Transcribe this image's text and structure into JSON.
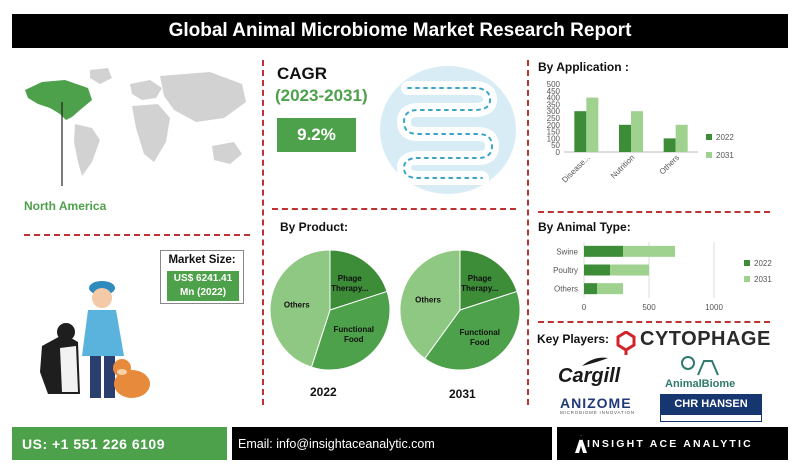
{
  "header": {
    "title": "Global Animal Microbiome Market Research Report"
  },
  "region": {
    "label": "North America"
  },
  "market_size": {
    "title": "Market Size:",
    "value_line1": "US$ 6241.41",
    "value_line2": "Mn (2022)"
  },
  "cagr": {
    "title": "CAGR",
    "period": "(2023-2031)",
    "value": "9.2%"
  },
  "product": {
    "title": "By Product:"
  },
  "application": {
    "title": "By Application :"
  },
  "animal_type": {
    "title": "By  Animal Type:"
  },
  "key_players": {
    "title": "Key Players:",
    "logos": [
      "CYTOPHAGE",
      "Cargill",
      "AnimalBiome",
      "ANIZOME",
      "MICROBIOME INNOVATION",
      "CHR HANSEN"
    ]
  },
  "footer": {
    "phone": "US: +1 551 226 6109",
    "email": "Email: info@insightaceanalytic.com",
    "brand": "INSIGHT ACE ANALYTIC"
  },
  "colors": {
    "dark_green": "#3c8c38",
    "light_green": "#9fd18f",
    "accent_green": "#4da14a",
    "divider_red": "#b33333"
  },
  "chart_data": [
    {
      "type": "bar",
      "title": "By Application :",
      "categories": [
        "Disease...",
        "Nutrition",
        "Others"
      ],
      "series": [
        {
          "name": "2022",
          "values": [
            300,
            200,
            100
          ]
        },
        {
          "name": "2031",
          "values": [
            400,
            300,
            200
          ]
        }
      ],
      "yticks": [
        0,
        50,
        100,
        150,
        200,
        250,
        300,
        350,
        400,
        450,
        500
      ],
      "ylim": [
        0,
        500
      ],
      "legend": "right"
    },
    {
      "type": "bar",
      "orientation": "horizontal",
      "stacked": true,
      "title": "By  Animal Type:",
      "categories": [
        "Swine",
        "Poultry",
        "Others"
      ],
      "series": [
        {
          "name": "2022",
          "values": [
            300,
            200,
            100
          ]
        },
        {
          "name": "2031",
          "values": [
            400,
            300,
            200
          ]
        }
      ],
      "xticks": [
        0,
        500,
        1000
      ],
      "xlim": [
        0,
        1000
      ],
      "legend": "right"
    },
    {
      "type": "pie",
      "label": "2022",
      "slices": [
        {
          "label": "Phage Therapy...",
          "value": 20
        },
        {
          "label": "Functional Food",
          "value": 35
        },
        {
          "label": "Others",
          "value": 45
        }
      ]
    },
    {
      "type": "pie",
      "label": "2031",
      "slices": [
        {
          "label": "Phage Therapy...",
          "value": 20
        },
        {
          "label": "Functional Food",
          "value": 40
        },
        {
          "label": "Others",
          "value": 40
        }
      ]
    }
  ]
}
